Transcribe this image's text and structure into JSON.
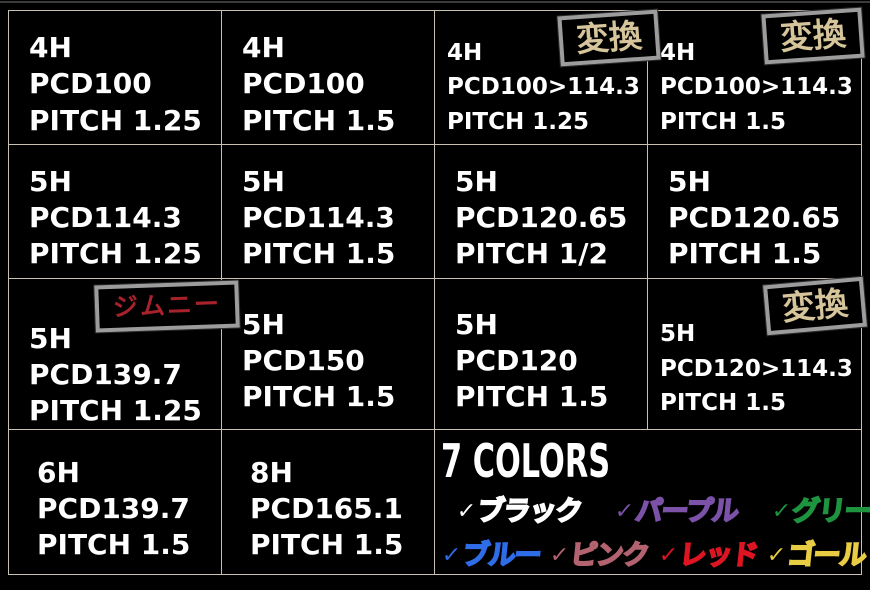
{
  "page": {
    "background": "#000000",
    "grid_line_color": "#c8c0b0",
    "badge_border_color": "#9c9c9c",
    "henkan_text_color": "#d6c59a",
    "jimny_text_color": "#a8222c"
  },
  "grid": {
    "cells": [
      {
        "lines": [
          "4H",
          "PCD100",
          "PITCH 1.25"
        ]
      },
      {
        "lines": [
          "4H",
          "PCD100",
          "PITCH 1.5"
        ]
      },
      {
        "lines": [
          "4H",
          "PCD100>114.3",
          "PITCH 1.25"
        ],
        "badge": "変換"
      },
      {
        "lines": [
          "4H",
          "PCD100>114.3",
          "PITCH 1.5"
        ],
        "badge": "変換"
      },
      {
        "lines": [
          "5H",
          "PCD114.3",
          "PITCH 1.25"
        ]
      },
      {
        "lines": [
          "5H",
          "PCD114.3",
          "PITCH 1.5"
        ]
      },
      {
        "lines": [
          "5H",
          "PCD120.65",
          "PITCH 1/2"
        ]
      },
      {
        "lines": [
          "5H",
          "PCD120.65",
          "PITCH 1.5"
        ]
      },
      {
        "lines": [
          "5H",
          "PCD139.7",
          "PITCH 1.25"
        ],
        "badge": "ジムニー"
      },
      {
        "lines": [
          "5H",
          "PCD150",
          "PITCH 1.5"
        ]
      },
      {
        "lines": [
          "5H",
          "PCD120",
          "PITCH 1.5"
        ]
      },
      {
        "lines": [
          "5H",
          "PCD120>114.3",
          "PITCH 1.5"
        ],
        "badge": "変換"
      },
      {
        "lines": [
          "6H",
          "PCD139.7",
          "PITCH 1.5"
        ]
      },
      {
        "lines": [
          "8H",
          "PCD165.1",
          "PITCH 1.5"
        ]
      }
    ]
  },
  "colors_section": {
    "title": "7 COLORS",
    "checkmark": "✓",
    "row1": [
      {
        "label": "ブラック",
        "hex": "#ffffff"
      },
      {
        "label": "パープル",
        "hex": "#7b52a8"
      },
      {
        "label": "グリーン",
        "hex": "#1e9440"
      }
    ],
    "row2": [
      {
        "label": "ブルー",
        "hex": "#2e6ce8"
      },
      {
        "label": "ピンク",
        "hex": "#b2636f"
      },
      {
        "label": "レッド",
        "hex": "#dd1522"
      },
      {
        "label": "ゴールド",
        "hex": "#e8cc44"
      }
    ]
  }
}
